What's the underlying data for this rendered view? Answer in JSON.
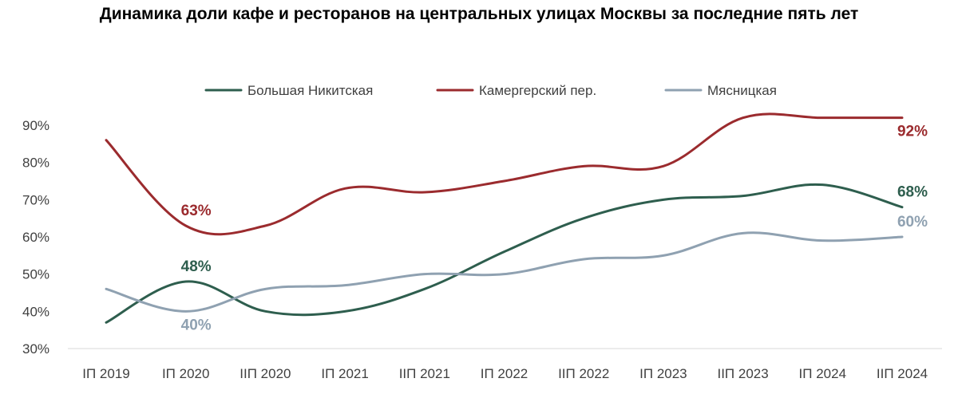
{
  "chart_data": {
    "type": "line",
    "title": "Динамика доли кафе и ресторанов на центральных улицах Москвы за последние пять лет",
    "categories": [
      "IП 2019",
      "IП 2020",
      "IIП 2020",
      "IП 2021",
      "IIП 2021",
      "IП 2022",
      "IIП 2022",
      "IП 2023",
      "IIП 2023",
      "IП 2024",
      "IIП 2024"
    ],
    "ylim": [
      30,
      90
    ],
    "yticks": [
      30,
      40,
      50,
      60,
      70,
      80,
      90
    ],
    "ytick_labels": [
      "30%",
      "40%",
      "50%",
      "60%",
      "70%",
      "80%",
      "90%"
    ],
    "legend_position": "top",
    "series": [
      {
        "name": "Большая Никитская",
        "color": "#2e5e4e",
        "values": [
          37,
          48,
          40,
          40,
          46,
          56,
          65,
          70,
          71,
          74,
          68
        ],
        "labels": [
          {
            "index": 1,
            "text": "48%",
            "position": "above"
          },
          {
            "index": 10,
            "text": "68%",
            "position": "above"
          }
        ]
      },
      {
        "name": "Камергерский пер.",
        "color": "#9b2b2e",
        "values": [
          86,
          63,
          63,
          73,
          72,
          75,
          79,
          79,
          92,
          92,
          92
        ],
        "labels": [
          {
            "index": 1,
            "text": "63%",
            "position": "above"
          },
          {
            "index": 10,
            "text": "92%",
            "position": "below"
          }
        ]
      },
      {
        "name": "Мясницкая",
        "color": "#8fa1b1",
        "values": [
          46,
          40,
          46,
          47,
          50,
          50,
          54,
          55,
          61,
          59,
          60
        ],
        "labels": [
          {
            "index": 1,
            "text": "40%",
            "position": "below"
          },
          {
            "index": 10,
            "text": "60%",
            "position": "above"
          }
        ]
      }
    ]
  }
}
